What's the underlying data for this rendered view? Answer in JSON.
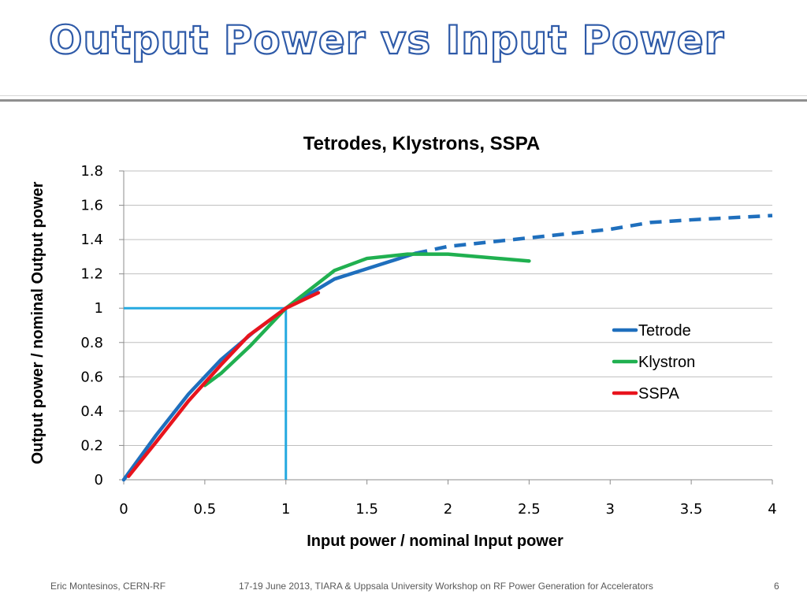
{
  "slide": {
    "title": "Output Power vs Input Power",
    "footer_left": "Eric Montesinos, CERN-RF",
    "footer_center": "17-19 June 2013, TIARA & Uppsala University Workshop on RF Power Generation for Accelerators",
    "page_number": "6"
  },
  "colors": {
    "tetrode": "#1f6fbd",
    "klystron": "#20b050",
    "sspa": "#e8141d",
    "reference": "#25a9e0",
    "grid": "#bfbfbf"
  },
  "chart_data": {
    "type": "line",
    "title": "Tetrodes, Klystrons, SSPA",
    "xlabel": "Input power / nominal Input power",
    "ylabel": "Output power / nominal Output power",
    "xlim": [
      0,
      4
    ],
    "ylim": [
      0,
      1.8
    ],
    "x_ticks": [
      0,
      0.5,
      1,
      1.5,
      2,
      2.5,
      3,
      3.5,
      4
    ],
    "x_tick_labels": [
      "0",
      "0.5",
      "1",
      "1.5",
      "2",
      "2.5",
      "3",
      "3.5",
      "4"
    ],
    "y_ticks": [
      0,
      0.2,
      0.4,
      0.6,
      0.8,
      1,
      1.2,
      1.4,
      1.6,
      1.8
    ],
    "y_tick_labels": [
      "0",
      "0.2",
      "0.4",
      "0.6",
      "0.8",
      "1",
      "1.2",
      "1.4",
      "1.6",
      "1.8"
    ],
    "grid": "horizontal",
    "legend_position": "right",
    "series": [
      {
        "name": "Tetrode",
        "x": [
          0,
          0.2,
          0.4,
          0.6,
          0.8,
          1.0,
          1.3,
          1.5,
          1.8
        ],
        "y": [
          0,
          0.26,
          0.5,
          0.7,
          0.86,
          1.0,
          1.17,
          1.23,
          1.32
        ],
        "color_key": "tetrode",
        "style": "solid"
      },
      {
        "name": "Tetrode",
        "legend": false,
        "x": [
          1.8,
          2.0,
          2.5,
          3.0,
          3.25,
          3.5,
          4.0
        ],
        "y": [
          1.32,
          1.36,
          1.41,
          1.46,
          1.5,
          1.515,
          1.54
        ],
        "color_key": "tetrode",
        "style": "dashed"
      },
      {
        "name": "Klystron",
        "x": [
          0.5,
          0.6,
          0.78,
          1.0,
          1.3,
          1.5,
          1.75,
          2.0,
          2.5
        ],
        "y": [
          0.55,
          0.62,
          0.78,
          1.0,
          1.22,
          1.29,
          1.315,
          1.315,
          1.275
        ],
        "color_key": "klystron",
        "style": "solid"
      },
      {
        "name": "SSPA",
        "x": [
          0.03,
          0.2,
          0.4,
          0.6,
          0.77,
          1.0,
          1.2
        ],
        "y": [
          0.02,
          0.22,
          0.46,
          0.67,
          0.84,
          1.0,
          1.09
        ],
        "color_key": "sspa",
        "style": "solid"
      }
    ],
    "reference_lines": [
      {
        "x": [
          0,
          1
        ],
        "y": [
          1,
          1
        ],
        "color_key": "reference"
      },
      {
        "x": [
          1,
          1
        ],
        "y": [
          0,
          1
        ],
        "color_key": "reference"
      }
    ]
  }
}
